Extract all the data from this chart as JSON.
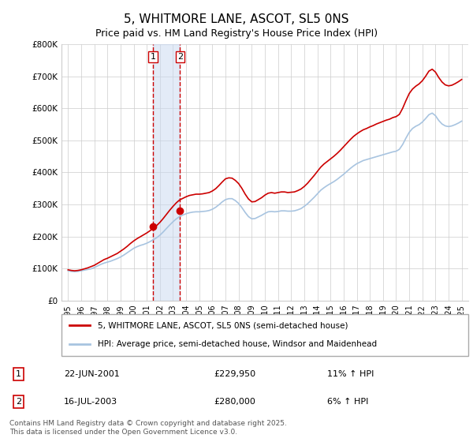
{
  "title": "5, WHITMORE LANE, ASCOT, SL5 0NS",
  "subtitle": "Price paid vs. HM Land Registry's House Price Index (HPI)",
  "legend_line1": "5, WHITMORE LANE, ASCOT, SL5 0NS (semi-detached house)",
  "legend_line2": "HPI: Average price, semi-detached house, Windsor and Maidenhead",
  "footnote": "Contains HM Land Registry data © Crown copyright and database right 2025.\nThis data is licensed under the Open Government Licence v3.0.",
  "sale1_label": "1",
  "sale1_date": "22-JUN-2001",
  "sale1_price": "£229,950",
  "sale1_hpi": "11% ↑ HPI",
  "sale1_year": 2001.47,
  "sale1_value": 229950,
  "sale2_label": "2",
  "sale2_date": "16-JUL-2003",
  "sale2_price": "£280,000",
  "sale2_hpi": "6% ↑ HPI",
  "sale2_year": 2003.54,
  "sale2_value": 280000,
  "line_color_property": "#cc0000",
  "line_color_hpi": "#a8c4e0",
  "shade_color": "#c8d8f0",
  "vline_color": "#cc0000",
  "marker_color": "#cc0000",
  "ylim": [
    0,
    800000
  ],
  "yticks": [
    0,
    100000,
    200000,
    300000,
    400000,
    500000,
    600000,
    700000,
    800000
  ],
  "ytick_labels": [
    "£0",
    "£100K",
    "£200K",
    "£300K",
    "£400K",
    "£500K",
    "£600K",
    "£700K",
    "£800K"
  ],
  "xlim": [
    1994.5,
    2025.5
  ],
  "xticks": [
    1995,
    1996,
    1997,
    1998,
    1999,
    2000,
    2001,
    2002,
    2003,
    2004,
    2005,
    2006,
    2007,
    2008,
    2009,
    2010,
    2011,
    2012,
    2013,
    2014,
    2015,
    2016,
    2017,
    2018,
    2019,
    2020,
    2021,
    2022,
    2023,
    2024,
    2025
  ],
  "hpi_years": [
    1995.0,
    1995.25,
    1995.5,
    1995.75,
    1996.0,
    1996.25,
    1996.5,
    1996.75,
    1997.0,
    1997.25,
    1997.5,
    1997.75,
    1998.0,
    1998.25,
    1998.5,
    1998.75,
    1999.0,
    1999.25,
    1999.5,
    1999.75,
    2000.0,
    2000.25,
    2000.5,
    2000.75,
    2001.0,
    2001.25,
    2001.5,
    2001.75,
    2002.0,
    2002.25,
    2002.5,
    2002.75,
    2003.0,
    2003.25,
    2003.5,
    2003.75,
    2004.0,
    2004.25,
    2004.5,
    2004.75,
    2005.0,
    2005.25,
    2005.5,
    2005.75,
    2006.0,
    2006.25,
    2006.5,
    2006.75,
    2007.0,
    2007.25,
    2007.5,
    2007.75,
    2008.0,
    2008.25,
    2008.5,
    2008.75,
    2009.0,
    2009.25,
    2009.5,
    2009.75,
    2010.0,
    2010.25,
    2010.5,
    2010.75,
    2011.0,
    2011.25,
    2011.5,
    2011.75,
    2012.0,
    2012.25,
    2012.5,
    2012.75,
    2013.0,
    2013.25,
    2013.5,
    2013.75,
    2014.0,
    2014.25,
    2014.5,
    2014.75,
    2015.0,
    2015.25,
    2015.5,
    2015.75,
    2016.0,
    2016.25,
    2016.5,
    2016.75,
    2017.0,
    2017.25,
    2017.5,
    2017.75,
    2018.0,
    2018.25,
    2018.5,
    2018.75,
    2019.0,
    2019.25,
    2019.5,
    2019.75,
    2020.0,
    2020.25,
    2020.5,
    2020.75,
    2021.0,
    2021.25,
    2021.5,
    2021.75,
    2022.0,
    2022.25,
    2022.5,
    2022.75,
    2023.0,
    2023.25,
    2023.5,
    2023.75,
    2024.0,
    2024.25,
    2024.5,
    2024.75,
    2025.0
  ],
  "hpi_values": [
    93000,
    91000,
    90000,
    91000,
    93000,
    95000,
    97000,
    99000,
    103000,
    108000,
    113000,
    117000,
    120000,
    123000,
    127000,
    131000,
    136000,
    142000,
    149000,
    156000,
    163000,
    168000,
    172000,
    175000,
    179000,
    184000,
    190000,
    196000,
    204000,
    214000,
    225000,
    236000,
    246000,
    255000,
    262000,
    267000,
    271000,
    274000,
    276000,
    277000,
    277000,
    278000,
    279000,
    281000,
    285000,
    291000,
    299000,
    308000,
    315000,
    318000,
    318000,
    312000,
    303000,
    290000,
    275000,
    262000,
    255000,
    256000,
    261000,
    266000,
    272000,
    277000,
    278000,
    277000,
    278000,
    280000,
    280000,
    279000,
    279000,
    280000,
    283000,
    287000,
    294000,
    302000,
    312000,
    322000,
    333000,
    344000,
    352000,
    359000,
    365000,
    371000,
    378000,
    386000,
    394000,
    403000,
    412000,
    420000,
    427000,
    432000,
    437000,
    440000,
    443000,
    446000,
    449000,
    452000,
    455000,
    458000,
    461000,
    464000,
    466000,
    472000,
    487000,
    507000,
    525000,
    537000,
    544000,
    549000,
    557000,
    568000,
    580000,
    585000,
    577000,
    562000,
    551000,
    545000,
    543000,
    545000,
    549000,
    554000,
    560000
  ],
  "prop_years": [
    1995.0,
    1995.25,
    1995.5,
    1995.75,
    1996.0,
    1996.25,
    1996.5,
    1996.75,
    1997.0,
    1997.25,
    1997.5,
    1997.75,
    1998.0,
    1998.25,
    1998.5,
    1998.75,
    1999.0,
    1999.25,
    1999.5,
    1999.75,
    2000.0,
    2000.25,
    2000.5,
    2000.75,
    2001.0,
    2001.25,
    2001.5,
    2001.75,
    2002.0,
    2002.25,
    2002.5,
    2002.75,
    2003.0,
    2003.25,
    2003.5,
    2003.75,
    2004.0,
    2004.25,
    2004.5,
    2004.75,
    2005.0,
    2005.25,
    2005.5,
    2005.75,
    2006.0,
    2006.25,
    2006.5,
    2006.75,
    2007.0,
    2007.25,
    2007.5,
    2007.75,
    2008.0,
    2008.25,
    2008.5,
    2008.75,
    2009.0,
    2009.25,
    2009.5,
    2009.75,
    2010.0,
    2010.25,
    2010.5,
    2010.75,
    2011.0,
    2011.25,
    2011.5,
    2011.75,
    2012.0,
    2012.25,
    2012.5,
    2012.75,
    2013.0,
    2013.25,
    2013.5,
    2013.75,
    2014.0,
    2014.25,
    2014.5,
    2014.75,
    2015.0,
    2015.25,
    2015.5,
    2015.75,
    2016.0,
    2016.25,
    2016.5,
    2016.75,
    2017.0,
    2017.25,
    2017.5,
    2017.75,
    2018.0,
    2018.25,
    2018.5,
    2018.75,
    2019.0,
    2019.25,
    2019.5,
    2019.75,
    2020.0,
    2020.25,
    2020.5,
    2020.75,
    2021.0,
    2021.25,
    2021.5,
    2021.75,
    2022.0,
    2022.25,
    2022.5,
    2022.75,
    2023.0,
    2023.25,
    2023.5,
    2023.75,
    2024.0,
    2024.25,
    2024.5,
    2024.75,
    2025.0
  ],
  "prop_values": [
    96000,
    94000,
    93000,
    94000,
    96000,
    99000,
    102000,
    106000,
    110000,
    116000,
    122000,
    128000,
    132000,
    137000,
    142000,
    147000,
    154000,
    161000,
    169000,
    178000,
    186000,
    193000,
    199000,
    205000,
    211000,
    218000,
    226000,
    234000,
    244000,
    256000,
    269000,
    282000,
    294000,
    305000,
    314000,
    319000,
    324000,
    328000,
    330000,
    332000,
    332000,
    333000,
    335000,
    337000,
    342000,
    349000,
    359000,
    370000,
    380000,
    383000,
    382000,
    375000,
    365000,
    350000,
    332000,
    317000,
    308000,
    309000,
    315000,
    321000,
    329000,
    335000,
    337000,
    335000,
    337000,
    339000,
    339000,
    337000,
    338000,
    339000,
    343000,
    348000,
    356000,
    366000,
    378000,
    390000,
    403000,
    416000,
    426000,
    434000,
    442000,
    450000,
    459000,
    469000,
    480000,
    491000,
    502000,
    512000,
    520000,
    527000,
    533000,
    537000,
    542000,
    546000,
    551000,
    555000,
    559000,
    563000,
    566000,
    571000,
    574000,
    581000,
    600000,
    624000,
    646000,
    660000,
    669000,
    676000,
    686000,
    700000,
    716000,
    722000,
    713000,
    696000,
    682000,
    673000,
    670000,
    672000,
    677000,
    683000,
    690000
  ]
}
